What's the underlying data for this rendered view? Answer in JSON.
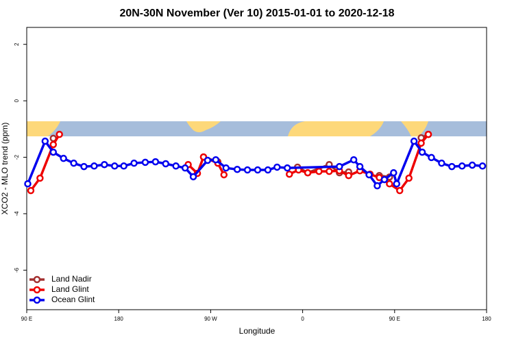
{
  "chart_data": {
    "type": "line",
    "title": "20N-30N November (Ver 10)   2015-01-01 to 2020-12-18",
    "x_label": "Longitude",
    "y_label": "XCO2 - MLO trend (ppm)",
    "xlim": [
      90,
      540
    ],
    "ylim": [
      -7.4,
      2.6
    ],
    "xticks": [
      {
        "value": 90,
        "label": "90 E"
      },
      {
        "value": 180,
        "label": "180"
      },
      {
        "value": 270,
        "label": "90 W"
      },
      {
        "value": 360,
        "label": "0"
      },
      {
        "value": 450,
        "label": "90 E"
      },
      {
        "value": 540,
        "label": "180"
      }
    ],
    "yticks": [
      2,
      0,
      -2,
      -4,
      -6
    ],
    "legend": "bottom-left",
    "series": [
      {
        "name": "Land Nadir",
        "color": "#a33030",
        "x": [
          116,
          null,
          263,
          277,
          null,
          355,
          365,
          386,
          396,
          405,
          null,
          435,
          445,
          null,
          476,
          483
        ],
        "values": [
          -1.33,
          null,
          -1.99,
          -2.16,
          null,
          -2.35,
          -2.55,
          -2.26,
          -2.55,
          -2.52,
          null,
          -2.65,
          -2.7,
          null,
          -1.31,
          -1.19
        ]
      },
      {
        "name": "Land Glint",
        "color": "#ee0000",
        "x": [
          94,
          103,
          116,
          122,
          null,
          248,
          257,
          263,
          277,
          283,
          null,
          347,
          356,
          365,
          376,
          386,
          396,
          405,
          416,
          426,
          435,
          445,
          455,
          464,
          476,
          483
        ],
        "values": [
          -3.18,
          -2.74,
          -1.55,
          -1.19,
          null,
          -2.26,
          -2.57,
          -1.99,
          -2.21,
          -2.62,
          null,
          -2.6,
          -2.45,
          -2.55,
          -2.5,
          -2.5,
          -2.48,
          -2.65,
          -2.48,
          -2.6,
          -2.72,
          -2.94,
          -3.18,
          -2.74,
          -1.5,
          -1.19
        ]
      },
      {
        "name": "Ocean Glint",
        "color": "#0000ee",
        "x": [
          91,
          108,
          116,
          126,
          136,
          146,
          156,
          166,
          176,
          185,
          195,
          206,
          216,
          226,
          236,
          245,
          253,
          267,
          275,
          285,
          296,
          306,
          316,
          326,
          335,
          345,
          396,
          410,
          416,
          425,
          433,
          440,
          449,
          452,
          469,
          477,
          486,
          496,
          506,
          516,
          526,
          536
        ],
        "values": [
          -2.94,
          -1.43,
          -1.82,
          -2.04,
          -2.21,
          -2.33,
          -2.31,
          -2.26,
          -2.31,
          -2.31,
          -2.21,
          -2.18,
          -2.16,
          -2.23,
          -2.31,
          -2.38,
          -2.69,
          -2.11,
          -2.09,
          -2.38,
          -2.43,
          -2.45,
          -2.45,
          -2.45,
          -2.35,
          -2.38,
          -2.33,
          -2.09,
          -2.33,
          -2.62,
          -3.01,
          -2.79,
          -2.55,
          -2.94,
          -1.43,
          -1.82,
          -2.01,
          -2.21,
          -2.33,
          -2.31,
          -2.28,
          -2.31
        ]
      }
    ]
  }
}
